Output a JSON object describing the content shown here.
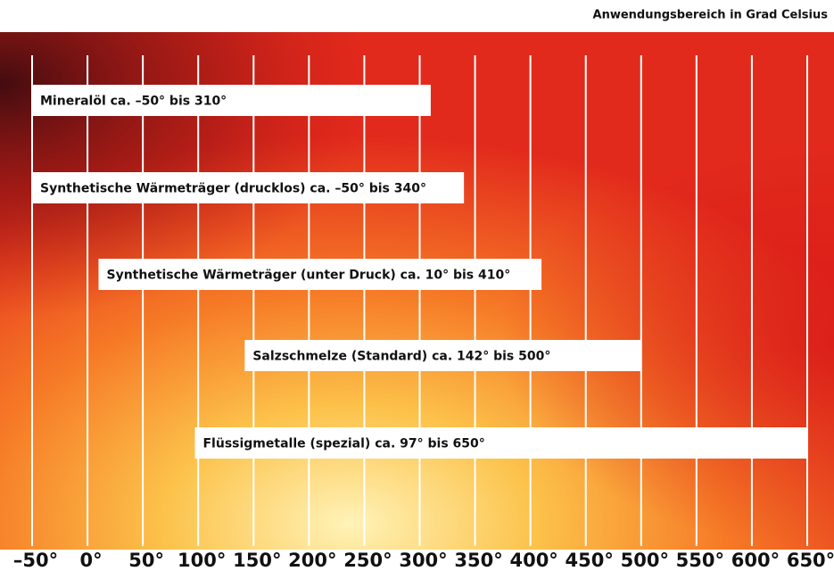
{
  "chart_data": {
    "type": "range-bar",
    "x_label": "Anwendungsbereich in Grad Celsius",
    "xlim": [
      -50,
      650
    ],
    "xticks": [
      {
        "value": -50,
        "label": "–50°"
      },
      {
        "value": 0,
        "label": "0°"
      },
      {
        "value": 50,
        "label": "50°"
      },
      {
        "value": 100,
        "label": "100°"
      },
      {
        "value": 150,
        "label": "150°"
      },
      {
        "value": 200,
        "label": "200°"
      },
      {
        "value": 250,
        "label": "250°"
      },
      {
        "value": 300,
        "label": "300°"
      },
      {
        "value": 350,
        "label": "350°"
      },
      {
        "value": 400,
        "label": "400°"
      },
      {
        "value": 450,
        "label": "450°"
      },
      {
        "value": 500,
        "label": "500°"
      },
      {
        "value": 550,
        "label": "550°"
      },
      {
        "value": 600,
        "label": "600°"
      },
      {
        "value": 650,
        "label": "650°"
      }
    ],
    "grid": true,
    "color": "#ffffff",
    "bars": [
      {
        "label": "Mineralöl ca. –50° bis 310°",
        "start": -50,
        "end": 310
      },
      {
        "label": "Synthetische Wärmeträger (drucklos) ca. –50° bis 340°",
        "start": -50,
        "end": 340
      },
      {
        "label": "Synthetische Wärmeträger (unter Druck) ca. 10° bis 410°",
        "start": 10,
        "end": 410
      },
      {
        "label": "Salzschmelze (Standard) ca. 142° bis 500°",
        "start": 142,
        "end": 500
      },
      {
        "label": "Flüssigmetalle (spezial) ca. 97° bis 650°",
        "start": 97,
        "end": 650
      }
    ]
  }
}
